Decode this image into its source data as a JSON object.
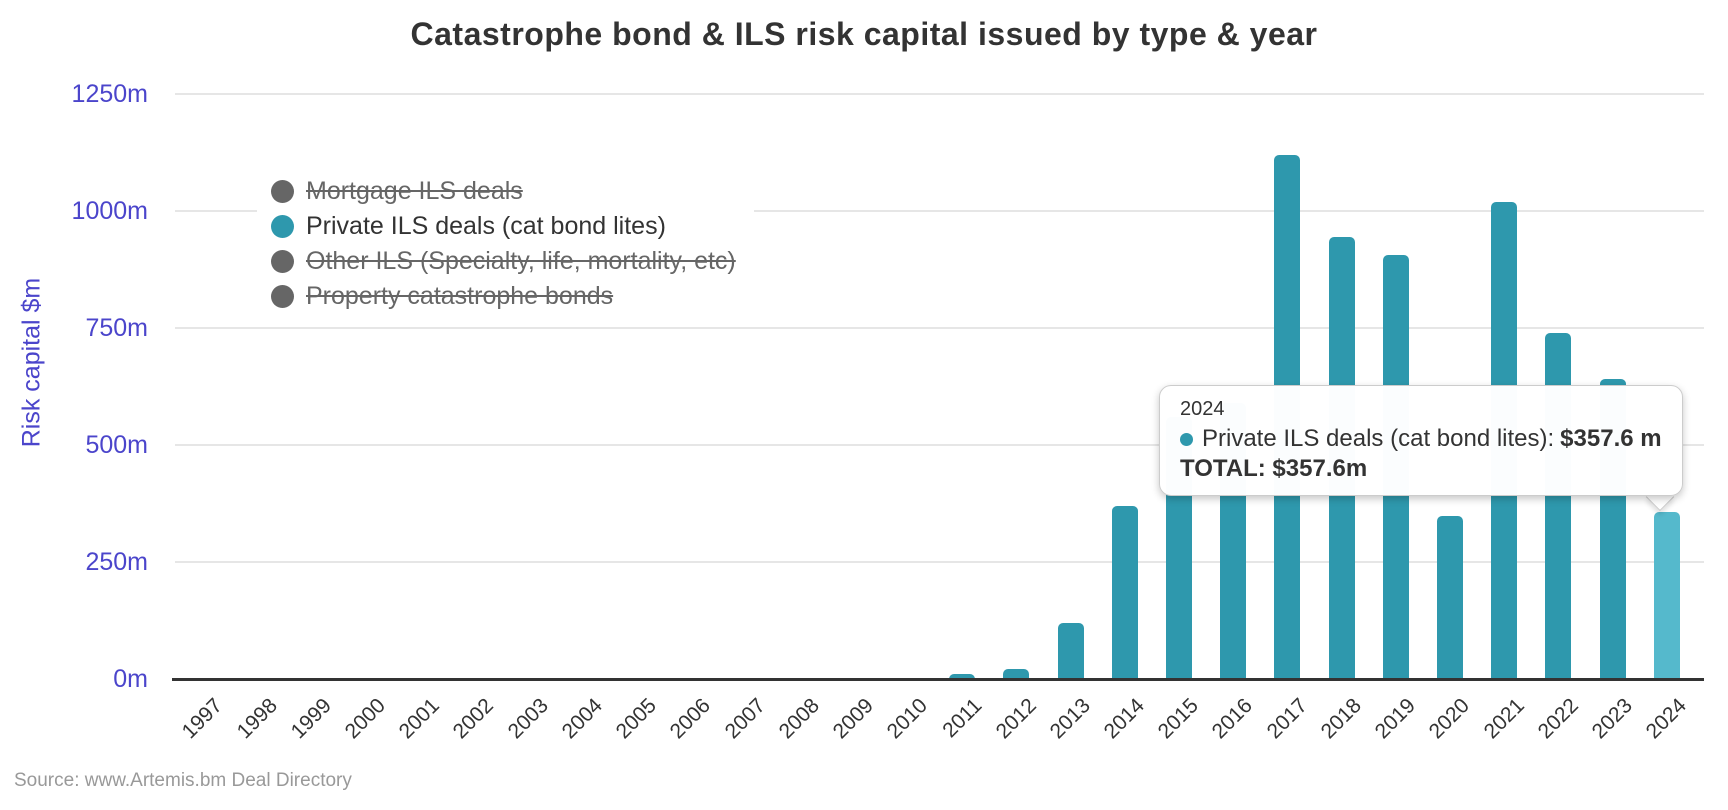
{
  "title": "Catastrophe bond & ILS risk capital issued by type & year",
  "y_axis": {
    "title": "Risk capital $m"
  },
  "legend": {
    "items": [
      {
        "label": "Mortgage ILS deals",
        "enabled": false,
        "color": "#666666"
      },
      {
        "label": "Private ILS deals (cat bond lites)",
        "enabled": true,
        "color": "#2e98ad"
      },
      {
        "label": "Other ILS (Specialty, life, mortality, etc)",
        "enabled": false,
        "color": "#666666"
      },
      {
        "label": "Property catastrophe bonds",
        "enabled": false,
        "color": "#666666"
      }
    ]
  },
  "tooltip": {
    "header": "2024",
    "series_label": "Private ILS deals (cat bond lites):",
    "series_value": "$357.6 m",
    "total_text": "TOTAL: $357.6m",
    "marker_color": "#2e98ad"
  },
  "source": "Source: www.Artemis.bm Deal Directory",
  "colors": {
    "bar": "#2e98ad",
    "bar_highlight": "#55b9cc",
    "axis_text": "#4b45cb",
    "title_text": "#333333",
    "gridline": "#e6e6e6",
    "axis_line": "#333333",
    "legend_disabled": "#666666",
    "source_text": "#999999"
  },
  "chart_data": {
    "type": "bar",
    "title": "Catastrophe bond & ILS risk capital issued by type & year",
    "xlabel": "",
    "ylabel": "Risk capital $m",
    "ylim": [
      0,
      1250
    ],
    "yticks": [
      0,
      250,
      500,
      750,
      1000,
      1250
    ],
    "ytick_labels": [
      "0m",
      "250m",
      "500m",
      "750m",
      "1000m",
      "1250m"
    ],
    "grid": true,
    "legend_position": "top-left",
    "categories": [
      "1997",
      "1998",
      "1999",
      "2000",
      "2001",
      "2002",
      "2003",
      "2004",
      "2005",
      "2006",
      "2007",
      "2008",
      "2009",
      "2010",
      "2011",
      "2012",
      "2013",
      "2014",
      "2015",
      "2016",
      "2017",
      "2018",
      "2019",
      "2020",
      "2021",
      "2022",
      "2023",
      "2024"
    ],
    "series": [
      {
        "name": "Mortgage ILS deals",
        "visible": false,
        "values": null
      },
      {
        "name": "Private ILS deals (cat bond lites)",
        "visible": true,
        "values": [
          0,
          0,
          0,
          0,
          0,
          0,
          0,
          0,
          0,
          0,
          0,
          0,
          0,
          0,
          10,
          22,
          120,
          370,
          560,
          590,
          1120,
          945,
          905,
          348,
          1020,
          740,
          640,
          357.6
        ]
      },
      {
        "name": "Other ILS (Specialty, life, mortality, etc)",
        "visible": false,
        "values": null
      },
      {
        "name": "Property catastrophe bonds",
        "visible": false,
        "values": null
      }
    ],
    "highlighted_category": "2024",
    "hovered_point": {
      "category": "2024",
      "series": "Private ILS deals (cat bond lites)",
      "value": 357.6
    }
  }
}
